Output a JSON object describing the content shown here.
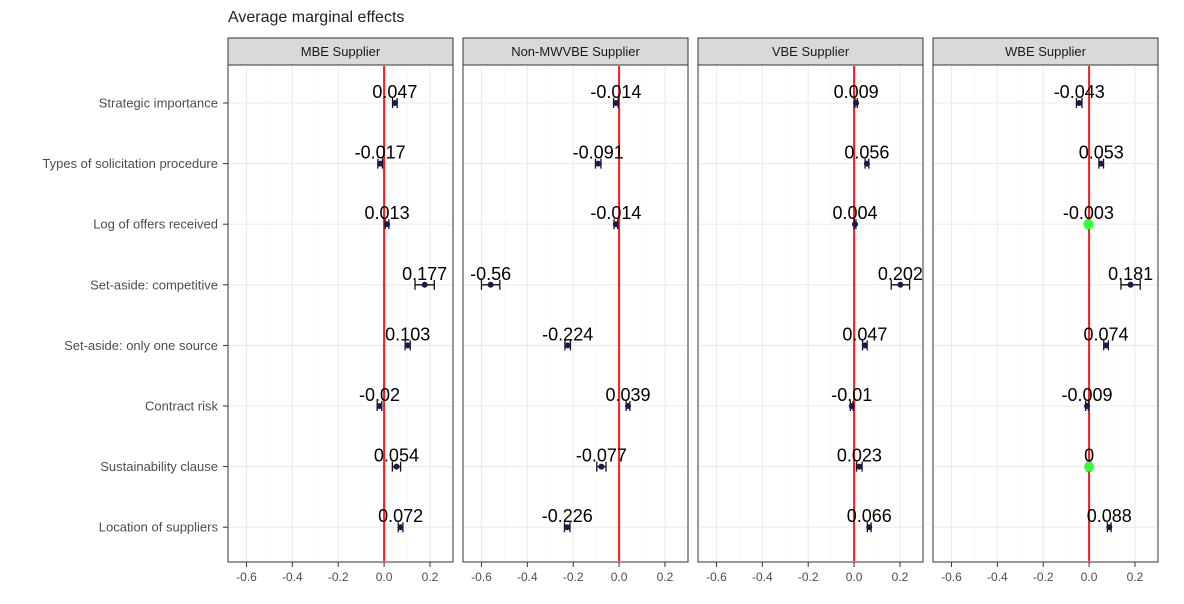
{
  "chart_data": {
    "type": "scatter",
    "title": "Average marginal effects",
    "xlim": [
      -0.65,
      0.27
    ],
    "x_ticks": [
      "-0.6",
      "-0.4",
      "-0.2",
      "0.0",
      "0.2"
    ],
    "x_tick_values": [
      -0.6,
      -0.4,
      -0.2,
      0.0,
      0.2
    ],
    "reference_line": 0,
    "grid": true,
    "colors": {
      "point_default": "#1a1a4e",
      "point_highlight": "#33ff33",
      "reference_line": "#ff1a1a",
      "strip_fill": "#d9d9d9"
    },
    "categories": [
      "Strategic importance",
      "Types of solicitation procedure",
      "Log of offers received",
      "Set-aside: competitive",
      "Set-aside: only one source",
      "Contract risk",
      "Sustainability clause",
      "Location of suppliers"
    ],
    "panels": [
      {
        "name": "MBE Supplier",
        "points": [
          {
            "value": 0.047,
            "label": "0.047",
            "ci": [
              0.037,
              0.057
            ],
            "highlight": false
          },
          {
            "value": -0.017,
            "label": "-0.017",
            "ci": [
              -0.027,
              -0.007
            ],
            "highlight": false
          },
          {
            "value": 0.013,
            "label": "0.013",
            "ci": [
              0.005,
              0.021
            ],
            "highlight": false
          },
          {
            "value": 0.177,
            "label": "0.177",
            "ci": [
              0.135,
              0.219
            ],
            "highlight": false
          },
          {
            "value": 0.103,
            "label": "0.103",
            "ci": [
              0.092,
              0.114
            ],
            "highlight": false
          },
          {
            "value": -0.02,
            "label": "-0.02",
            "ci": [
              -0.03,
              -0.01
            ],
            "highlight": false
          },
          {
            "value": 0.054,
            "label": "0.054",
            "ci": [
              0.036,
              0.072
            ],
            "highlight": false
          },
          {
            "value": 0.072,
            "label": "0.072",
            "ci": [
              0.062,
              0.082
            ],
            "highlight": false
          }
        ]
      },
      {
        "name": "Non-MWVBE Supplier",
        "points": [
          {
            "value": -0.014,
            "label": "-0.014",
            "ci": [
              -0.024,
              -0.004
            ],
            "highlight": false
          },
          {
            "value": -0.091,
            "label": "-0.091",
            "ci": [
              -0.103,
              -0.079
            ],
            "highlight": false
          },
          {
            "value": -0.014,
            "label": "-0.014",
            "ci": [
              -0.022,
              -0.006
            ],
            "highlight": false
          },
          {
            "value": -0.56,
            "label": "-0.56",
            "ci": [
              -0.6,
              -0.52
            ],
            "highlight": false
          },
          {
            "value": -0.224,
            "label": "-0.224",
            "ci": [
              -0.236,
              -0.212
            ],
            "highlight": false
          },
          {
            "value": 0.039,
            "label": "0.039",
            "ci": [
              0.031,
              0.047
            ],
            "highlight": false
          },
          {
            "value": -0.077,
            "label": "-0.077",
            "ci": [
              -0.097,
              -0.057
            ],
            "highlight": false
          },
          {
            "value": -0.226,
            "label": "-0.226",
            "ci": [
              -0.238,
              -0.214
            ],
            "highlight": false
          }
        ]
      },
      {
        "name": "VBE Supplier",
        "points": [
          {
            "value": 0.009,
            "label": "0.009",
            "ci": [
              0.004,
              0.014
            ],
            "highlight": false
          },
          {
            "value": 0.056,
            "label": "0.056",
            "ci": [
              0.048,
              0.064
            ],
            "highlight": false
          },
          {
            "value": 0.004,
            "label": "0.004",
            "ci": [
              0.0,
              0.008
            ],
            "highlight": false
          },
          {
            "value": 0.202,
            "label": "0.202",
            "ci": [
              0.162,
              0.242
            ],
            "highlight": false
          },
          {
            "value": 0.047,
            "label": "0.047",
            "ci": [
              0.037,
              0.057
            ],
            "highlight": false
          },
          {
            "value": -0.01,
            "label": "-0.01",
            "ci": [
              -0.016,
              -0.004
            ],
            "highlight": false
          },
          {
            "value": 0.023,
            "label": "0.023",
            "ci": [
              0.011,
              0.035
            ],
            "highlight": false
          },
          {
            "value": 0.066,
            "label": "0.066",
            "ci": [
              0.058,
              0.074
            ],
            "highlight": false
          }
        ]
      },
      {
        "name": "WBE Supplier",
        "points": [
          {
            "value": -0.043,
            "label": "-0.043",
            "ci": [
              -0.055,
              -0.031
            ],
            "highlight": false
          },
          {
            "value": 0.053,
            "label": "0.053",
            "ci": [
              0.043,
              0.063
            ],
            "highlight": false
          },
          {
            "value": -0.003,
            "label": "-0.003",
            "ci": [
              -0.009,
              0.003
            ],
            "highlight": true
          },
          {
            "value": 0.181,
            "label": "0.181",
            "ci": [
              0.139,
              0.223
            ],
            "highlight": false
          },
          {
            "value": 0.074,
            "label": "0.074",
            "ci": [
              0.064,
              0.084
            ],
            "highlight": false
          },
          {
            "value": -0.009,
            "label": "-0.009",
            "ci": [
              -0.015,
              -0.003
            ],
            "highlight": false
          },
          {
            "value": 0.0,
            "label": "0",
            "ci": [
              -0.008,
              0.008
            ],
            "highlight": true
          },
          {
            "value": 0.088,
            "label": "0.088",
            "ci": [
              0.08,
              0.096
            ],
            "highlight": false
          }
        ]
      }
    ]
  }
}
